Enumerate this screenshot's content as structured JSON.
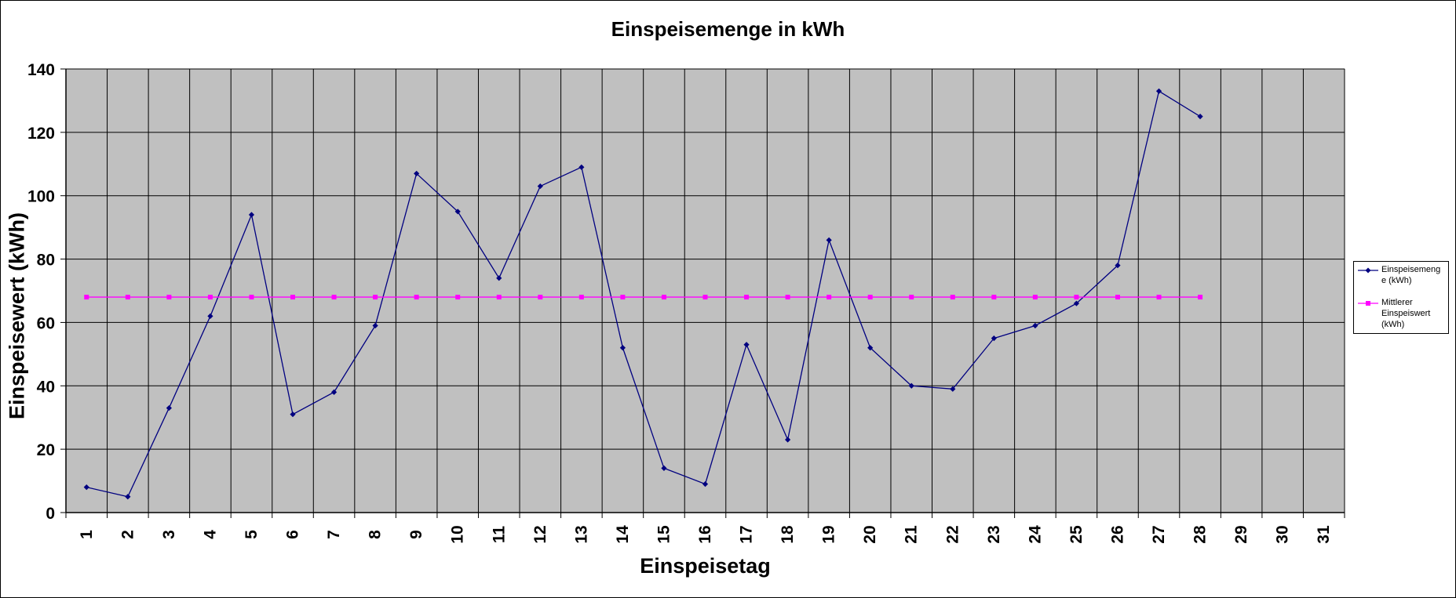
{
  "chart_data": {
    "type": "line",
    "title": "Einspeisemenge in kWh",
    "xlabel": "Einspeisetag",
    "ylabel": "Einspeisewert  (kWh)",
    "categories": [
      "1",
      "2",
      "3",
      "4",
      "5",
      "6",
      "7",
      "8",
      "9",
      "10",
      "11",
      "12",
      "13",
      "14",
      "15",
      "16",
      "17",
      "18",
      "19",
      "20",
      "21",
      "22",
      "23",
      "24",
      "25",
      "26",
      "27",
      "28",
      "29",
      "30",
      "31"
    ],
    "yticks": [
      "0",
      "20",
      "40",
      "60",
      "80",
      "100",
      "120",
      "140"
    ],
    "ylim": [
      0,
      140
    ],
    "grid": true,
    "legend_position": "right",
    "series": [
      {
        "name": "Einspeisemenge (kWh)",
        "legend_lines": [
          "Einspeiseme­ng",
          "e (kWh)"
        ],
        "color": "#000080",
        "marker": "diamond",
        "values": [
          8,
          5,
          33,
          62,
          94,
          31,
          38,
          59,
          107,
          95,
          74,
          103,
          109,
          52,
          14,
          9,
          53,
          23,
          86,
          52,
          40,
          39,
          55,
          59,
          66,
          78,
          133,
          125,
          null,
          null,
          null
        ]
      },
      {
        "name": "Mittlerer Einspeiswert (kWh)",
        "legend_lines": [
          "Mittlerer",
          "Einspeiswert",
          "(kWh)"
        ],
        "color": "#ff00ff",
        "marker": "square",
        "values": [
          68,
          68,
          68,
          68,
          68,
          68,
          68,
          68,
          68,
          68,
          68,
          68,
          68,
          68,
          68,
          68,
          68,
          68,
          68,
          68,
          68,
          68,
          68,
          68,
          68,
          68,
          68,
          68,
          null,
          null,
          null
        ]
      }
    ],
    "plot_background": "#c0c0c0"
  }
}
